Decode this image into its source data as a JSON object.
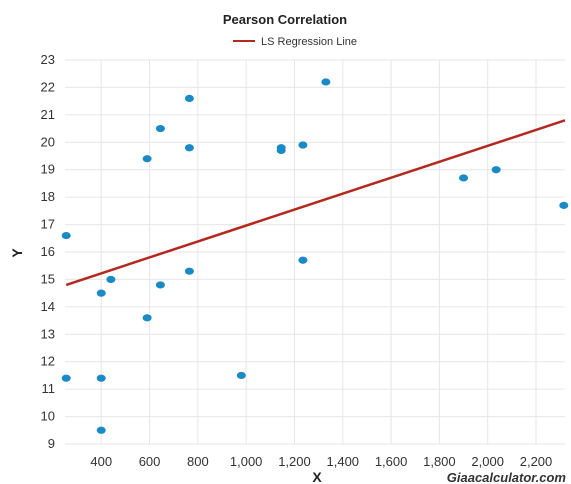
{
  "chart_data": {
    "type": "scatter",
    "title": "Pearson Correlation",
    "xlabel": "X",
    "ylabel": "Y",
    "xlim": [
      250,
      2320
    ],
    "ylim": [
      9,
      23
    ],
    "x_ticks": [
      400,
      600,
      800,
      1000,
      1200,
      1400,
      1600,
      1800,
      2000,
      2200
    ],
    "x_tick_labels": [
      "400",
      "600",
      "800",
      "1,000",
      "1,200",
      "1,400",
      "1,600",
      "1,800",
      "2,000",
      "2,200"
    ],
    "y_ticks": [
      9,
      10,
      11,
      12,
      13,
      14,
      15,
      16,
      17,
      18,
      19,
      20,
      21,
      22,
      23
    ],
    "y_tick_labels": [
      "9",
      "10",
      "11",
      "12",
      "13",
      "14",
      "15",
      "16",
      "17",
      "18",
      "19",
      "20",
      "21",
      "22",
      "23"
    ],
    "grid": true,
    "legend_position": "top-center",
    "series": [
      {
        "points": [
          {
            "x": 255,
            "y": 16.6
          },
          {
            "x": 255,
            "y": 11.4
          },
          {
            "x": 400,
            "y": 14.5
          },
          {
            "x": 400,
            "y": 11.4
          },
          {
            "x": 400,
            "y": 9.5
          },
          {
            "x": 440,
            "y": 15.0
          },
          {
            "x": 590,
            "y": 19.4
          },
          {
            "x": 590,
            "y": 13.6
          },
          {
            "x": 645,
            "y": 20.5
          },
          {
            "x": 645,
            "y": 14.8
          },
          {
            "x": 765,
            "y": 21.6
          },
          {
            "x": 765,
            "y": 19.8
          },
          {
            "x": 765,
            "y": 15.3
          },
          {
            "x": 980,
            "y": 11.5
          },
          {
            "x": 1145,
            "y": 19.8
          },
          {
            "x": 1145,
            "y": 19.7
          },
          {
            "x": 1235,
            "y": 19.9
          },
          {
            "x": 1235,
            "y": 15.7
          },
          {
            "x": 1330,
            "y": 22.2
          },
          {
            "x": 1900,
            "y": 18.7
          },
          {
            "x": 2035,
            "y": 19.0
          },
          {
            "x": 2315,
            "y": 17.7
          }
        ]
      },
      {
        "name": "LS Regression Line",
        "type": "line",
        "points": [
          {
            "x": 255,
            "y": 14.8
          },
          {
            "x": 2320,
            "y": 20.8
          }
        ]
      }
    ]
  },
  "colors": {
    "points": "#1a8ac6",
    "regression": "#b22a1f",
    "grid": "#e6e6e6"
  },
  "watermark": "Giaacalculator.com"
}
